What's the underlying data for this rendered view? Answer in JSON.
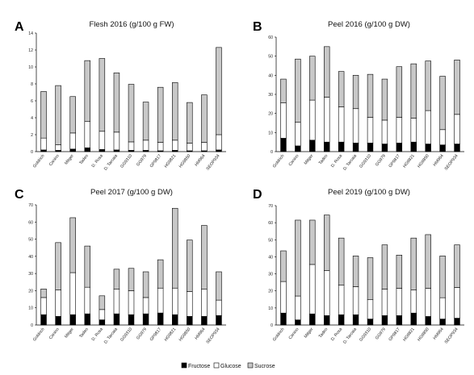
{
  "legend": [
    {
      "name": "Fructose",
      "color": "#000000"
    },
    {
      "name": "Glucose",
      "color": "#ffffff"
    },
    {
      "name": "Sucrose",
      "color": "#c8c8c8"
    }
  ],
  "chart_data": [
    {
      "type": "bar",
      "panel_label": "A",
      "title": "Flesh 2016 (g/100 g FW)",
      "stacked": true,
      "ylim": [
        0,
        14
      ],
      "yticks": [
        0,
        2,
        4,
        6,
        8,
        10,
        12,
        14
      ],
      "categories": [
        "Goldrich",
        "Canino",
        "Mitger",
        "Tadeo",
        "D. Rosa",
        "D. Tarcaia",
        "GG9310",
        "GG979",
        "GP9817",
        "HG9821",
        "HG9850",
        "HM964",
        "SEOP934"
      ],
      "series": [
        {
          "name": "Fructose",
          "values": [
            0.2,
            0.15,
            0.3,
            0.45,
            0.25,
            0.2,
            0.15,
            0.15,
            0.1,
            0.15,
            0.1,
            0.1,
            0.2
          ]
        },
        {
          "name": "Glucose",
          "values": [
            1.4,
            0.65,
            1.9,
            3.1,
            2.15,
            2.1,
            1.0,
            1.2,
            1.0,
            1.2,
            0.9,
            1.0,
            1.8
          ]
        },
        {
          "name": "Sucrose",
          "values": [
            5.5,
            7.0,
            4.3,
            7.2,
            8.6,
            7.0,
            6.8,
            4.5,
            6.5,
            6.8,
            4.8,
            5.6,
            10.3
          ]
        }
      ]
    },
    {
      "type": "bar",
      "panel_label": "B",
      "title": "Peel 2016 (g/100 g DW)",
      "stacked": true,
      "ylim": [
        0,
        60
      ],
      "yticks": [
        0,
        10,
        20,
        30,
        40,
        50,
        60
      ],
      "categories": [
        "Goldrich",
        "Canino",
        "Mitger",
        "Tadeo",
        "D. Rosa",
        "D. Tarcaia",
        "GG9310",
        "GG979",
        "GP9817",
        "HG9821",
        "HG9850",
        "HM964",
        "SEOP934"
      ],
      "series": [
        {
          "name": "Fructose",
          "values": [
            7,
            3,
            6,
            5,
            5,
            4.5,
            4.5,
            4,
            4.5,
            5,
            4,
            3.5,
            4
          ]
        },
        {
          "name": "Glucose",
          "values": [
            18.5,
            12.5,
            21,
            23.5,
            18.5,
            18,
            13.5,
            12.5,
            13.5,
            12.5,
            17.5,
            8,
            15.5
          ]
        },
        {
          "name": "Sucrose",
          "values": [
            12.5,
            33,
            23,
            26.5,
            18.5,
            17.5,
            22.5,
            21.5,
            26.5,
            28.5,
            26,
            28,
            28.5
          ]
        }
      ]
    },
    {
      "type": "bar",
      "panel_label": "C",
      "title": "Peel 2017 (g/100 g DW)",
      "stacked": true,
      "ylim": [
        0,
        70
      ],
      "yticks": [
        0,
        10,
        20,
        30,
        40,
        50,
        60,
        70
      ],
      "categories": [
        "Goldrich",
        "Canino",
        "Mitger",
        "Tadeo",
        "D. Rosa",
        "D. Tarcaia",
        "GG9310",
        "GG979",
        "GP9817",
        "HG9821",
        "HG9850",
        "HM964",
        "SEOP934"
      ],
      "series": [
        {
          "name": "Fructose",
          "values": [
            6,
            5,
            6,
            6.5,
            3,
            6.5,
            6,
            6.5,
            7,
            6,
            5,
            5,
            5.5
          ]
        },
        {
          "name": "Glucose",
          "values": [
            10,
            15.5,
            24.5,
            15.5,
            6,
            14.5,
            14,
            9.5,
            14.5,
            15.5,
            14.5,
            16,
            9
          ]
        },
        {
          "name": "Sucrose",
          "values": [
            5,
            27.5,
            32,
            24,
            8,
            11.5,
            13,
            15,
            16.5,
            46.5,
            30,
            37,
            16.5
          ]
        }
      ]
    },
    {
      "type": "bar",
      "panel_label": "D",
      "title": "Peel 2019 (g/100 g DW)",
      "stacked": true,
      "ylim": [
        0,
        70
      ],
      "yticks": [
        0,
        10,
        20,
        30,
        40,
        50,
        60,
        70
      ],
      "categories": [
        "Goldrich",
        "Canino",
        "Mitger",
        "Tadeo",
        "D. Rosa",
        "D. Tarcaia",
        "GG9310",
        "GG979",
        "GP9817",
        "HG9821",
        "HG9850",
        "HM964",
        "SEOP934"
      ],
      "series": [
        {
          "name": "Fructose",
          "values": [
            7,
            3,
            6.5,
            5.5,
            6,
            6,
            3.5,
            5.5,
            5.5,
            7,
            5,
            3.5,
            4
          ]
        },
        {
          "name": "Glucose",
          "values": [
            18.5,
            14,
            29,
            26.5,
            17.5,
            16.5,
            11.5,
            15.5,
            16,
            13.5,
            16.5,
            12.5,
            18
          ]
        },
        {
          "name": "Sucrose",
          "values": [
            18,
            44.5,
            26,
            32.5,
            27.5,
            18,
            24.5,
            26,
            19.5,
            30.5,
            31.5,
            24.5,
            25
          ]
        }
      ]
    }
  ]
}
